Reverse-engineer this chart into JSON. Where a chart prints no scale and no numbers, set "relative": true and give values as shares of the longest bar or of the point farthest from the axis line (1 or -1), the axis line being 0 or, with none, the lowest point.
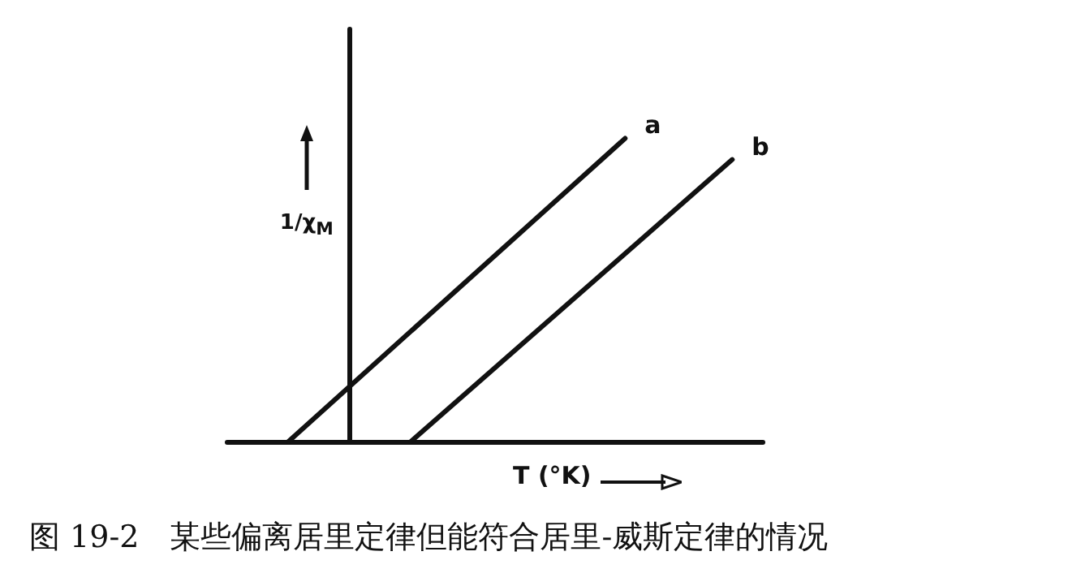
{
  "chart_data": {
    "type": "line",
    "relative": true,
    "xlabel": "T (°K)",
    "ylabel": "1/χ$_{M}$",
    "annotations": [
      "图 19-2　某些偏离居里定律但能符合居里-威斯定律的情况"
    ],
    "categories": [
      null,
      null,
      null,
      null,
      null,
      null,
      null,
      null,
      null,
      null,
      null,
      null,
      null,
      null,
      null,
      null,
      null,
      null,
      null,
      null,
      null,
      null,
      null,
      null,
      null,
      null,
      null,
      null,
      null,
      null,
      null,
      null,
      null,
      null,
      null,
      null
    ],
    "grid": false,
    "legend": false,
    "marker": "none",
    "line_style": "solid",
    "series": [
      {
        "name": "a",
        "color": "#111111",
        "values": [
          null,
          null,
          null,
          null,
          0,
          null,
          null,
          null,
          null,
          null,
          null,
          null,
          null,
          null,
          null,
          null,
          null,
          null,
          null,
          null,
          null,
          null,
          null,
          null,
          null,
          null,
          1,
          null,
          null,
          null,
          null,
          null,
          null,
          null,
          null,
          null
        ]
      },
      {
        "name": "b",
        "color": "#111111",
        "values": [
          null,
          null,
          null,
          null,
          null,
          null,
          null,
          null,
          null,
          null,
          null,
          null,
          0,
          null,
          null,
          null,
          null,
          null,
          null,
          null,
          null,
          null,
          null,
          null,
          null,
          null,
          null,
          null,
          null,
          null,
          null,
          null,
          null,
          0.93,
          null,
          null
        ]
      }
    ]
  }
}
